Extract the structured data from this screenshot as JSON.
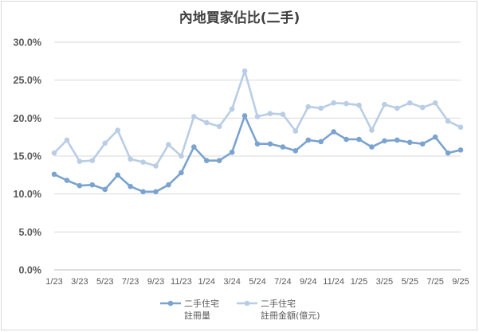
{
  "chart_data": {
    "type": "line",
    "title": "內地買家佔比(二手)",
    "categories": [
      "1/23",
      "2/23",
      "3/23",
      "4/23",
      "5/23",
      "6/23",
      "7/23",
      "8/23",
      "9/23",
      "10/23",
      "11/23",
      "12/23",
      "1/24",
      "2/24",
      "3/24",
      "4/24",
      "5/24",
      "6/24",
      "7/24",
      "8/24",
      "9/24",
      "10/24",
      "11/24",
      "12/24",
      "1/25",
      "2/25",
      "3/25",
      "4/25",
      "5/25",
      "6/25",
      "7/25",
      "8/25",
      "9/25"
    ],
    "tick_labels": [
      "1/23",
      "3/23",
      "5/23",
      "7/23",
      "9/23",
      "11/23",
      "1/24",
      "3/24",
      "5/24",
      "7/24",
      "9/24",
      "11/24",
      "1/25",
      "3/25",
      "5/25",
      "7/25",
      "9/25"
    ],
    "y_tick_labels": [
      "0.0%",
      "5.0%",
      "10.0%",
      "15.0%",
      "20.0%",
      "25.0%",
      "30.0%"
    ],
    "ylim": [
      0,
      30
    ],
    "grid": true,
    "legend_position": "bottom",
    "series": [
      {
        "name_lines": [
          "二手住宅",
          "註冊量"
        ],
        "color": "#7ba3cf",
        "values": [
          12.6,
          11.8,
          11.1,
          11.2,
          10.6,
          12.5,
          11.0,
          10.3,
          10.3,
          11.2,
          12.8,
          16.2,
          14.4,
          14.4,
          15.5,
          20.3,
          16.6,
          16.6,
          16.2,
          15.7,
          17.1,
          16.9,
          18.2,
          17.2,
          17.2,
          16.2,
          17.0,
          17.1,
          16.8,
          16.6,
          17.5,
          15.4,
          15.8
        ]
      },
      {
        "name_lines": [
          "二手住宅",
          "註冊金額(億元)"
        ],
        "color": "#b9cde5",
        "values": [
          15.4,
          17.1,
          14.3,
          14.4,
          16.7,
          18.4,
          14.6,
          14.2,
          13.7,
          16.5,
          15.0,
          20.2,
          19.4,
          18.9,
          21.2,
          26.2,
          20.2,
          20.6,
          20.5,
          18.3,
          21.5,
          21.3,
          22.0,
          21.9,
          21.7,
          18.4,
          21.8,
          21.3,
          22.0,
          21.4,
          22.0,
          19.6,
          18.8
        ]
      }
    ]
  }
}
